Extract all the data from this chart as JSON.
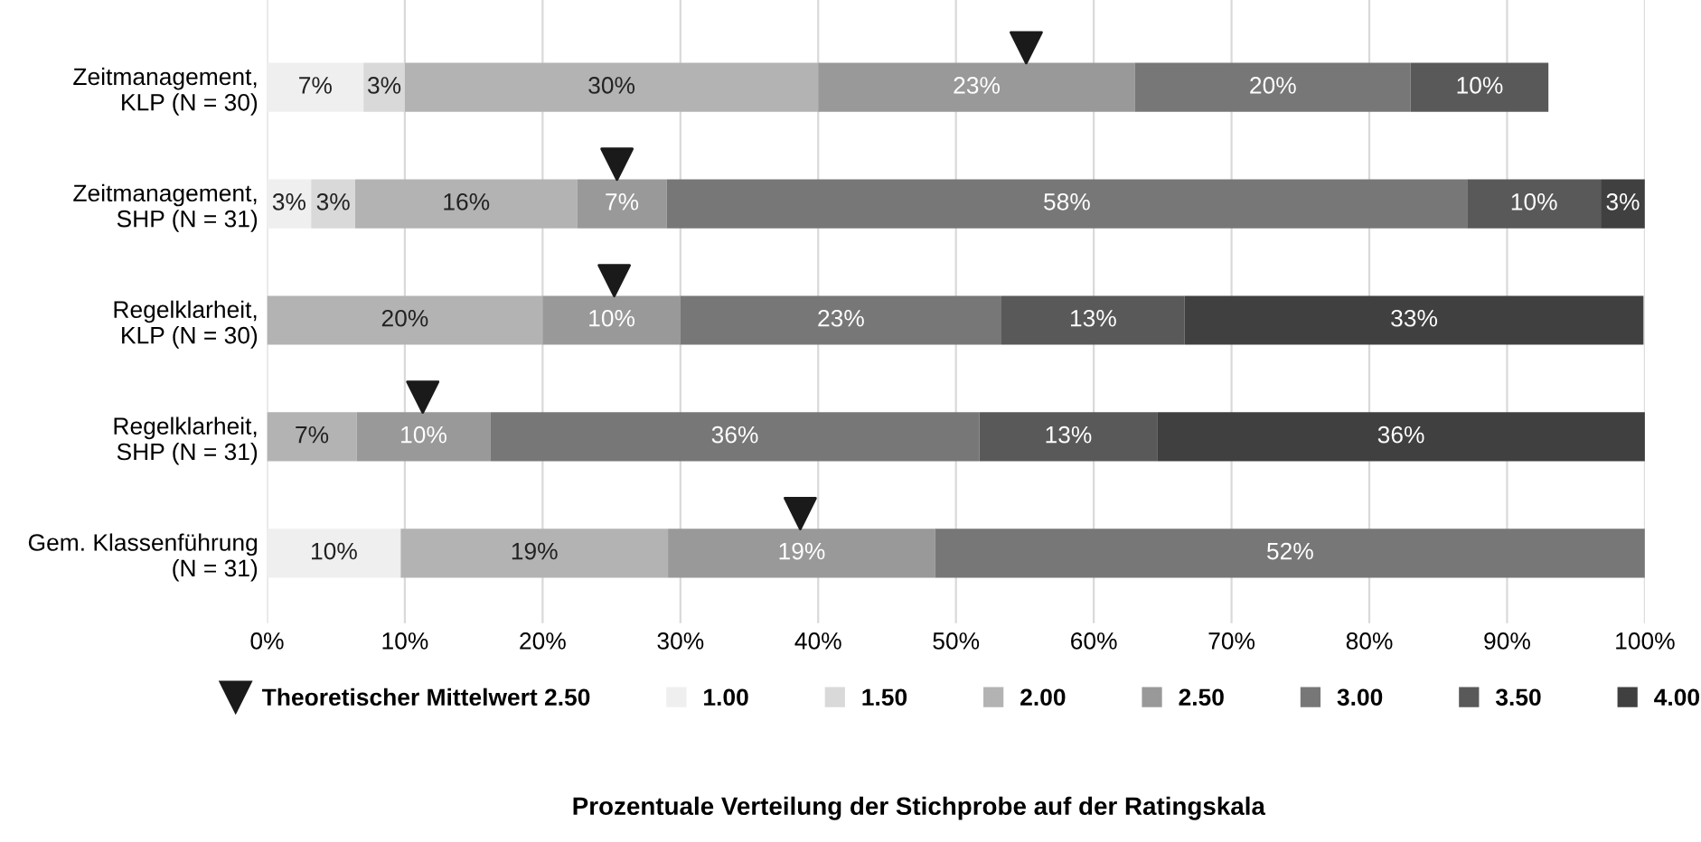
{
  "chart_data": {
    "type": "bar",
    "orientation": "horizontal",
    "stacked": true,
    "annotations": [
      "Prozentuale Verteilung der Stichprobe auf der Ratingskala"
    ],
    "categories": [
      "Zeitmanagement,\nKLP (N = 30)",
      "Zeitmanagement,\nSHP (N = 31)",
      "Regelklarheit,\nKLP (N = 30)",
      "Regelklarheit,\nSHP (N = 31)",
      "Gem. Klassenführung\n(N = 31)"
    ],
    "series": [
      {
        "name": "Theoretischer Mittelwert 2.50",
        "type": "scatter",
        "marker": "triangle",
        "color": "#1a1a1a",
        "values": [
          55.1,
          25.4,
          25.2,
          11.3,
          38.7
        ]
      },
      {
        "name": "1.00",
        "color": "#efefef",
        "values": [
          7,
          3.2,
          null,
          null,
          9.7
        ],
        "value_labels": [
          "7%",
          "3%",
          null,
          null,
          "10%"
        ]
      },
      {
        "name": "1.50",
        "color": "#d9d9d9",
        "values": [
          3,
          3.2,
          null,
          null,
          null
        ],
        "value_labels": [
          "3%",
          "3%",
          null,
          null,
          null
        ]
      },
      {
        "name": "2.00",
        "color": "#b3b3b3",
        "values": [
          30,
          16.1,
          20.0,
          6.5,
          19.4
        ],
        "value_labels": [
          "30%",
          "16%",
          "20%",
          "7%",
          "19%"
        ]
      },
      {
        "name": "2.50",
        "color": "#999999",
        "values": [
          23,
          6.5,
          10.0,
          9.7,
          19.4
        ],
        "value_labels": [
          "23%",
          "7%",
          "10%",
          "10%",
          "19%"
        ]
      },
      {
        "name": "3.00",
        "color": "#777777",
        "values": [
          20,
          58.1,
          23.3,
          35.5,
          51.5
        ],
        "value_labels": [
          "20%",
          "58%",
          "23%",
          "36%",
          "52%"
        ]
      },
      {
        "name": "3.50",
        "color": "#595959",
        "values": [
          10,
          9.7,
          13.3,
          12.9,
          null
        ],
        "value_labels": [
          "10%",
          "10%",
          "13%",
          "13%",
          null
        ]
      },
      {
        "name": "4.00",
        "color": "#404040",
        "values": [
          null,
          3.2,
          33.3,
          35.5,
          null
        ],
        "value_labels": [
          null,
          "3%",
          "33%",
          "36%",
          null
        ]
      }
    ],
    "xlim": [
      0,
      100
    ],
    "xticks": [
      {
        "value": 0,
        "label": "0%"
      },
      {
        "value": 10,
        "label": "10%"
      },
      {
        "value": 20,
        "label": "20%"
      },
      {
        "value": 30,
        "label": "30%"
      },
      {
        "value": 40,
        "label": "40%"
      },
      {
        "value": 50,
        "label": "50%"
      },
      {
        "value": 60,
        "label": "60%"
      },
      {
        "value": 70,
        "label": "70%"
      },
      {
        "value": 80,
        "label": "80%"
      },
      {
        "value": 90,
        "label": "90%"
      },
      {
        "value": 100,
        "label": "100%"
      }
    ],
    "grid": "x",
    "legend": "bottom"
  }
}
